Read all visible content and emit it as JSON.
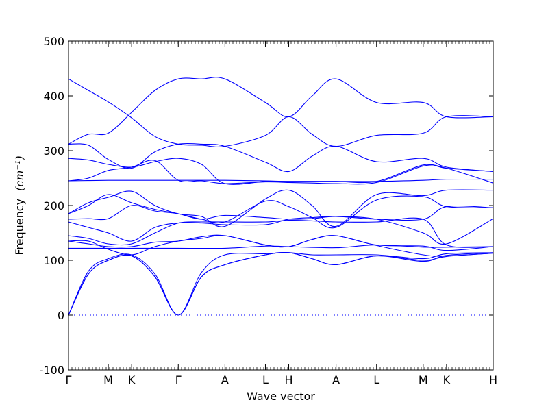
{
  "chart_data": {
    "type": "line",
    "title": "",
    "xlabel": "Wave vector",
    "ylabel": "Frequency",
    "ylabel_unit": "(cm⁻¹)",
    "ylim": [
      -100,
      500
    ],
    "yticks": [
      -100,
      0,
      100,
      200,
      300,
      400,
      500
    ],
    "grid": false,
    "legend": "none",
    "series_color": "#0000ff",
    "zero_line_color": "#0000ff",
    "x_points": [
      {
        "label": "Γ",
        "x": 0.0
      },
      {
        "label": "M",
        "x": 0.58
      },
      {
        "label": "K",
        "x": 0.92
      },
      {
        "label": "Γ",
        "x": 1.6
      },
      {
        "label": "A",
        "x": 2.28
      },
      {
        "label": "L",
        "x": 2.87
      },
      {
        "label": "H",
        "x": 3.21
      },
      {
        "label": "A",
        "x": 3.9
      },
      {
        "label": "L",
        "x": 4.49
      },
      {
        "label": "M",
        "x": 5.17
      },
      {
        "label": "K",
        "x": 5.51
      },
      {
        "label": "H",
        "x": 6.19
      }
    ],
    "xlim": [
      0,
      6.19
    ],
    "series": [
      {
        "values": [
          [
            0,
            0
          ],
          [
            0.29,
            75
          ],
          [
            0.58,
            100
          ],
          [
            0.92,
            108
          ],
          [
            1.26,
            70
          ],
          [
            1.6,
            0
          ],
          [
            1.94,
            70
          ],
          [
            2.28,
            92
          ],
          [
            2.87,
            110
          ],
          [
            3.21,
            114
          ],
          [
            3.55,
            103
          ],
          [
            3.9,
            92
          ],
          [
            4.49,
            108
          ],
          [
            5.17,
            100
          ],
          [
            5.51,
            107
          ],
          [
            6.19,
            113
          ]
        ]
      },
      {
        "values": [
          [
            0,
            0
          ],
          [
            0.29,
            75
          ],
          [
            0.58,
            100
          ],
          [
            0.92,
            108
          ],
          [
            1.26,
            70
          ],
          [
            1.6,
            0
          ],
          [
            1.94,
            70
          ],
          [
            2.28,
            92
          ],
          [
            2.87,
            110
          ],
          [
            3.21,
            114
          ],
          [
            3.55,
            103
          ],
          [
            3.9,
            92
          ],
          [
            4.49,
            108
          ],
          [
            5.17,
            98
          ],
          [
            5.51,
            109
          ],
          [
            6.19,
            114
          ]
        ]
      },
      {
        "values": [
          [
            0,
            0
          ],
          [
            0.29,
            80
          ],
          [
            0.58,
            103
          ],
          [
            0.92,
            110
          ],
          [
            1.26,
            75
          ],
          [
            1.6,
            0
          ],
          [
            1.94,
            78
          ],
          [
            2.28,
            110
          ],
          [
            2.87,
            112
          ],
          [
            3.21,
            114
          ],
          [
            3.55,
            110
          ],
          [
            3.9,
            110
          ],
          [
            4.49,
            110
          ],
          [
            5.17,
            103
          ],
          [
            5.51,
            112
          ],
          [
            6.19,
            114
          ]
        ]
      },
      {
        "values": [
          [
            0,
            122
          ],
          [
            0.58,
            122
          ],
          [
            0.92,
            122
          ],
          [
            1.6,
            122
          ],
          [
            2.28,
            122
          ],
          [
            2.87,
            126
          ],
          [
            3.21,
            125
          ],
          [
            3.9,
            123
          ],
          [
            4.49,
            128
          ],
          [
            5.17,
            124
          ],
          [
            5.51,
            124
          ],
          [
            6.19,
            125
          ]
        ]
      },
      {
        "values": [
          [
            0,
            135
          ],
          [
            0.29,
            130
          ],
          [
            0.58,
            125
          ],
          [
            0.92,
            125
          ],
          [
            1.26,
            133
          ],
          [
            1.6,
            135
          ],
          [
            1.94,
            143
          ],
          [
            2.28,
            145
          ],
          [
            2.87,
            128
          ],
          [
            3.21,
            125
          ],
          [
            3.55,
            138
          ],
          [
            3.9,
            145
          ],
          [
            4.49,
            128
          ],
          [
            5.17,
            126
          ],
          [
            5.51,
            118
          ],
          [
            6.19,
            125
          ]
        ]
      },
      {
        "values": [
          [
            0,
            135
          ],
          [
            0.29,
            135
          ],
          [
            0.58,
            120
          ],
          [
            0.92,
            110
          ],
          [
            1.26,
            125
          ],
          [
            1.6,
            135
          ],
          [
            1.94,
            140
          ],
          [
            2.28,
            145
          ],
          [
            2.87,
            128
          ],
          [
            3.21,
            125
          ],
          [
            3.55,
            138
          ],
          [
            3.9,
            145
          ],
          [
            4.49,
            127
          ],
          [
            5.17,
            110
          ],
          [
            5.51,
            108
          ],
          [
            6.19,
            113
          ]
        ]
      },
      {
        "values": [
          [
            0,
            145
          ],
          [
            0.29,
            140
          ],
          [
            0.58,
            130
          ],
          [
            0.92,
            130
          ],
          [
            1.26,
            150
          ],
          [
            1.6,
            168
          ],
          [
            1.94,
            170
          ],
          [
            2.28,
            170
          ],
          [
            2.87,
            170
          ],
          [
            3.21,
            173
          ],
          [
            3.55,
            172
          ],
          [
            3.9,
            170
          ],
          [
            4.49,
            170
          ],
          [
            5.17,
            175
          ],
          [
            5.51,
            128
          ],
          [
            6.19,
            125
          ]
        ]
      },
      {
        "values": [
          [
            0,
            170
          ],
          [
            0.29,
            160
          ],
          [
            0.58,
            150
          ],
          [
            0.92,
            135
          ],
          [
            1.26,
            160
          ],
          [
            1.6,
            168
          ],
          [
            1.94,
            168
          ],
          [
            2.28,
            165
          ],
          [
            2.87,
            165
          ],
          [
            3.21,
            175
          ],
          [
            3.55,
            178
          ],
          [
            3.9,
            180
          ],
          [
            4.49,
            175
          ],
          [
            5.17,
            150
          ],
          [
            5.51,
            130
          ],
          [
            6.19,
            176
          ]
        ]
      },
      {
        "values": [
          [
            0,
            175
          ],
          [
            0.29,
            176
          ],
          [
            0.58,
            176
          ],
          [
            0.92,
            200
          ],
          [
            1.26,
            190
          ],
          [
            1.6,
            185
          ],
          [
            1.94,
            175
          ],
          [
            2.28,
            170
          ],
          [
            2.87,
            208
          ],
          [
            3.21,
            198
          ],
          [
            3.55,
            178
          ],
          [
            3.9,
            160
          ],
          [
            4.49,
            210
          ],
          [
            5.17,
            216
          ],
          [
            5.51,
            198
          ],
          [
            6.19,
            196
          ]
        ]
      },
      {
        "values": [
          [
            0,
            185
          ],
          [
            0.29,
            200
          ],
          [
            0.58,
            220
          ],
          [
            0.92,
            205
          ],
          [
            1.26,
            193
          ],
          [
            1.6,
            185
          ],
          [
            1.94,
            175
          ],
          [
            2.28,
            182
          ],
          [
            2.87,
            178
          ],
          [
            3.21,
            175
          ],
          [
            3.55,
            176
          ],
          [
            3.9,
            180
          ],
          [
            4.49,
            175
          ],
          [
            5.17,
            175
          ],
          [
            5.51,
            198
          ],
          [
            6.19,
            196
          ]
        ]
      },
      {
        "values": [
          [
            0,
            185
          ],
          [
            0.29,
            205
          ],
          [
            0.58,
            215
          ],
          [
            0.92,
            226
          ],
          [
            1.26,
            200
          ],
          [
            1.6,
            185
          ],
          [
            1.94,
            180
          ],
          [
            2.28,
            162
          ],
          [
            2.87,
            212
          ],
          [
            3.21,
            228
          ],
          [
            3.55,
            200
          ],
          [
            3.9,
            162
          ],
          [
            4.49,
            220
          ],
          [
            5.17,
            218
          ],
          [
            5.51,
            228
          ],
          [
            6.19,
            228
          ]
        ]
      },
      {
        "values": [
          [
            0,
            245
          ],
          [
            0.58,
            246
          ],
          [
            0.92,
            246
          ],
          [
            1.6,
            246
          ],
          [
            2.28,
            246
          ],
          [
            2.87,
            245
          ],
          [
            3.21,
            244
          ],
          [
            3.9,
            244
          ],
          [
            4.49,
            244
          ],
          [
            5.17,
            246
          ],
          [
            5.51,
            248
          ],
          [
            6.19,
            248
          ]
        ]
      },
      {
        "values": [
          [
            0,
            245
          ],
          [
            0.29,
            250
          ],
          [
            0.58,
            264
          ],
          [
            0.92,
            270
          ],
          [
            1.26,
            282
          ],
          [
            1.6,
            246
          ],
          [
            1.94,
            245
          ],
          [
            2.28,
            240
          ],
          [
            2.87,
            243
          ],
          [
            3.21,
            242
          ],
          [
            3.55,
            241
          ],
          [
            3.9,
            240
          ],
          [
            4.49,
            242
          ],
          [
            5.17,
            272
          ],
          [
            5.51,
            268
          ],
          [
            6.19,
            241
          ]
        ]
      },
      {
        "values": [
          [
            0,
            286
          ],
          [
            0.29,
            283
          ],
          [
            0.58,
            275
          ],
          [
            0.92,
            270
          ],
          [
            1.26,
            280
          ],
          [
            1.6,
            286
          ],
          [
            1.94,
            275
          ],
          [
            2.28,
            240
          ],
          [
            2.87,
            244
          ],
          [
            3.21,
            244
          ],
          [
            3.55,
            244
          ],
          [
            3.9,
            244
          ],
          [
            4.49,
            244
          ],
          [
            5.17,
            274
          ],
          [
            5.51,
            268
          ],
          [
            6.19,
            262
          ]
        ]
      },
      {
        "values": [
          [
            0,
            312
          ],
          [
            0.29,
            310
          ],
          [
            0.58,
            284
          ],
          [
            0.92,
            268
          ],
          [
            1.26,
            298
          ],
          [
            1.6,
            312
          ],
          [
            1.94,
            312
          ],
          [
            2.28,
            308
          ],
          [
            2.87,
            279
          ],
          [
            3.21,
            262
          ],
          [
            3.55,
            290
          ],
          [
            3.9,
            308
          ],
          [
            4.49,
            280
          ],
          [
            5.17,
            286
          ],
          [
            5.51,
            270
          ],
          [
            6.19,
            262
          ]
        ]
      },
      {
        "values": [
          [
            0,
            312
          ],
          [
            0.29,
            330
          ],
          [
            0.58,
            332
          ],
          [
            0.92,
            370
          ],
          [
            1.26,
            410
          ],
          [
            1.6,
            431
          ],
          [
            1.94,
            431
          ],
          [
            2.28,
            431
          ],
          [
            2.87,
            388
          ],
          [
            3.21,
            362
          ],
          [
            3.55,
            400
          ],
          [
            3.9,
            431
          ],
          [
            4.49,
            388
          ],
          [
            5.17,
            388
          ],
          [
            5.51,
            362
          ],
          [
            6.19,
            362
          ]
        ]
      },
      {
        "values": [
          [
            0,
            431
          ],
          [
            0.29,
            410
          ],
          [
            0.58,
            389
          ],
          [
            0.92,
            360
          ],
          [
            1.26,
            326
          ],
          [
            1.6,
            312
          ],
          [
            1.94,
            310
          ],
          [
            2.28,
            308
          ],
          [
            2.87,
            328
          ],
          [
            3.21,
            362
          ],
          [
            3.55,
            330
          ],
          [
            3.9,
            308
          ],
          [
            4.49,
            328
          ],
          [
            5.17,
            332
          ],
          [
            5.51,
            362
          ],
          [
            6.19,
            362
          ]
        ]
      }
    ]
  }
}
